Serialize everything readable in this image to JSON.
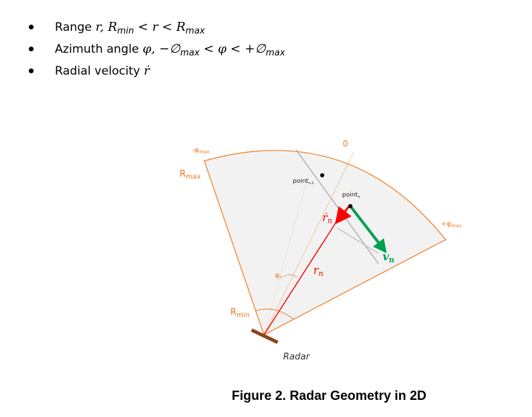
{
  "bullets": [
    {
      "label": "Range",
      "math": "r, R",
      "sub1": "min",
      "rel": " < r < R",
      "sub2": "max"
    },
    {
      "label": "Azimuth angle",
      "math": "φ,  −∅",
      "sub1": "max",
      "rel": " < φ < +∅",
      "sub2": "max"
    },
    {
      "label": "Radial velocity",
      "math": "ṙ"
    }
  ],
  "diagram": {
    "neg_phi_max": "-φ",
    "neg_phi_max_sub": "max",
    "pos_phi_max": "+φ",
    "pos_phi_max_sub": "max",
    "r_max": "R",
    "r_max_sub": "max",
    "r_min": "R",
    "r_min_sub": "min",
    "zero": "0",
    "point_prev": "point",
    "point_prev_sub": "n-1",
    "point_n": "point",
    "point_n_sub": "n",
    "phi_n": "φ",
    "phi_n_sub": "n",
    "rdot_n": "ṙ",
    "rdot_n_sub": "n",
    "r_n": "r",
    "r_n_sub": "n",
    "v_n": "v",
    "v_n_sub": "n",
    "radar": "Radar",
    "colors": {
      "sector_fill": "#f2f2f2",
      "sector_stroke": "#ee7a1f",
      "radial": "#ff0000",
      "velocity": "#00a050",
      "radar": "#8b4513"
    }
  },
  "caption": "Figure 2. Radar Geometry in 2D"
}
